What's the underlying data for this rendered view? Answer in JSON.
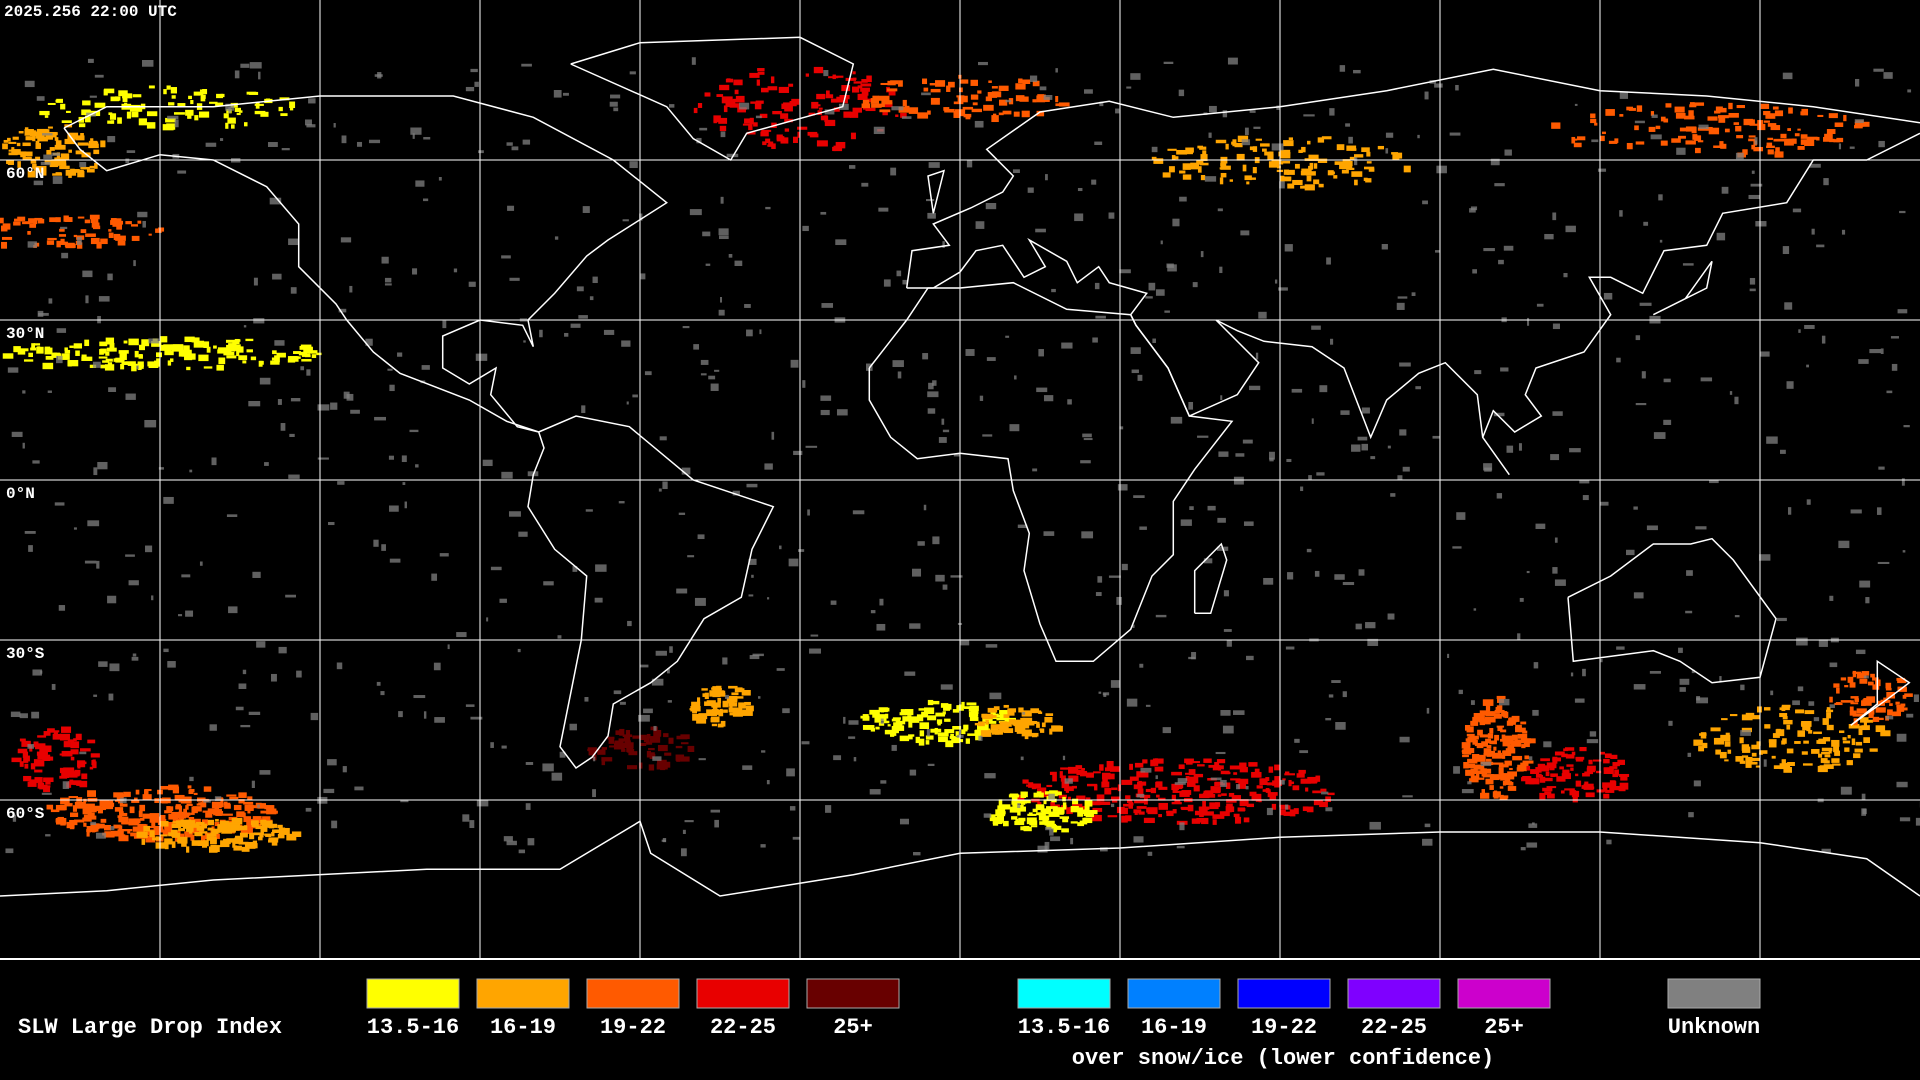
{
  "header": {
    "timestamp": "2025.256 22:00 UTC"
  },
  "map": {
    "projection": "equirectangular",
    "grid_lines": true,
    "latitude_labels": [
      "60°N",
      "30°N",
      "0°N",
      "30°S",
      "60°S"
    ]
  },
  "legend": {
    "title": "SLW Large Drop Index",
    "items": [
      {
        "label": "13.5-16",
        "color": "#ffff00"
      },
      {
        "label": "16-19",
        "color": "#ffa500"
      },
      {
        "label": "19-22",
        "color": "#ff5a00"
      },
      {
        "label": "22-25",
        "color": "#e80000"
      },
      {
        "label": "25+",
        "color": "#680000"
      }
    ],
    "snow_items": [
      {
        "label": "13.5-16",
        "color": "#00ffff"
      },
      {
        "label": "16-19",
        "color": "#0080ff"
      },
      {
        "label": "19-22",
        "color": "#0000ff"
      },
      {
        "label": "22-25",
        "color": "#7f00ff"
      },
      {
        "label": "25+",
        "color": "#cc00cc"
      }
    ],
    "snow_caption": "over snow/ice (lower confidence)",
    "unknown": {
      "label": "Unknown",
      "color": "#808080"
    }
  }
}
